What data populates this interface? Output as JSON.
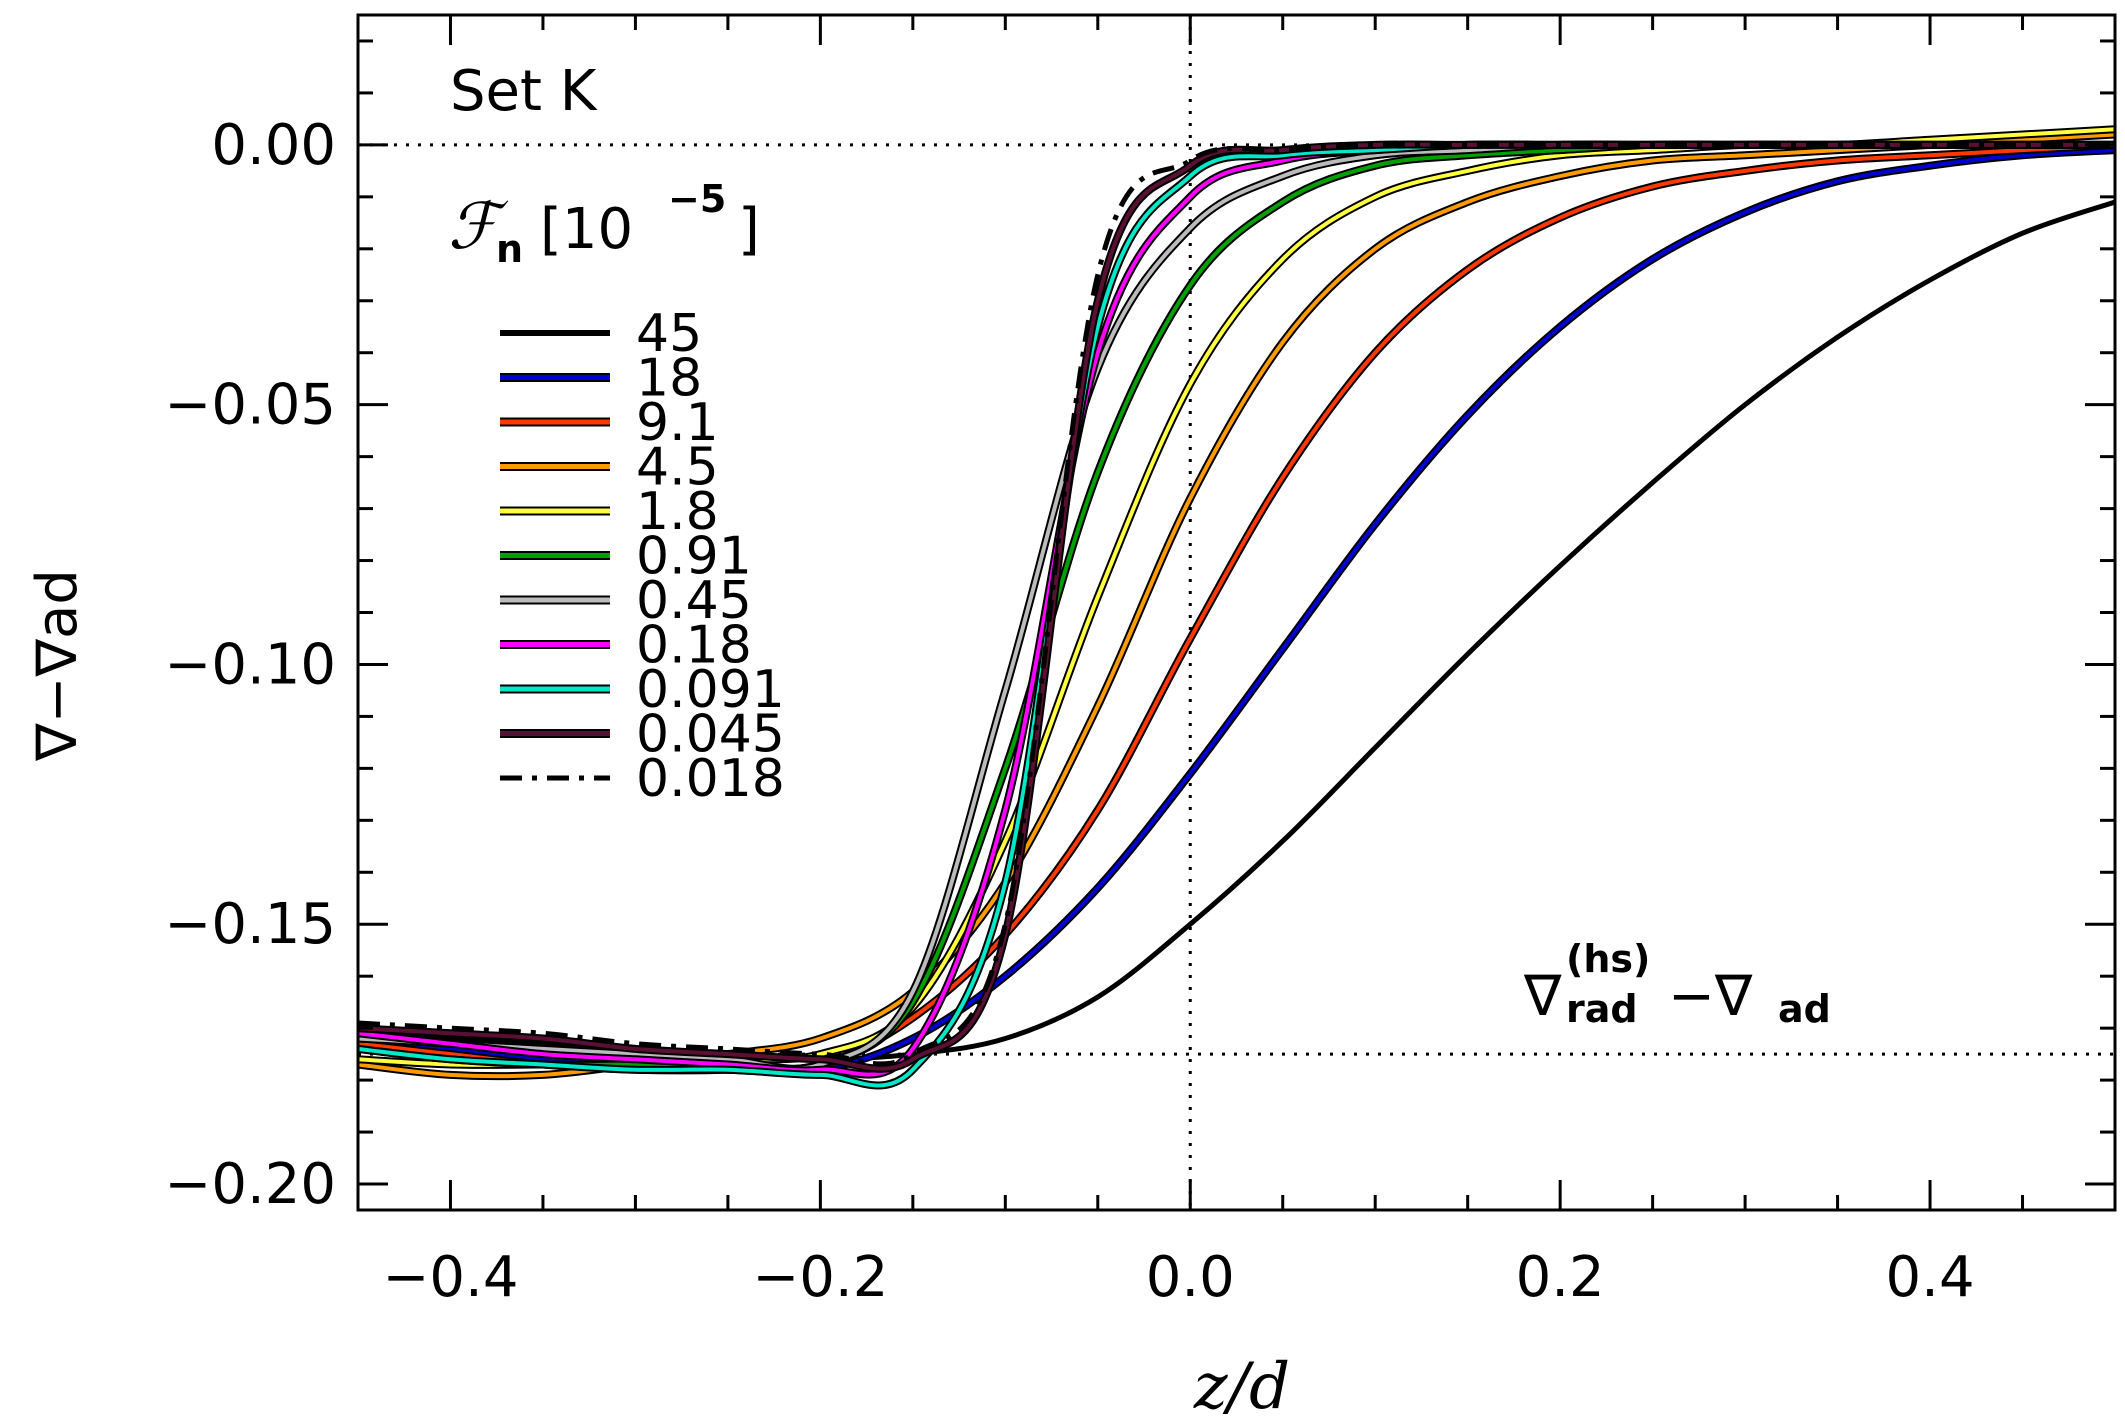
{
  "chart_data": {
    "type": "line",
    "title": "",
    "xlabel": "z/d",
    "ylabel": "∇−∇ad",
    "xlim": [
      -0.45,
      0.5
    ],
    "ylim": [
      -0.205,
      0.025
    ],
    "xticks": [
      -0.4,
      -0.2,
      0.0,
      0.2,
      0.4
    ],
    "xtick_labels": [
      "−0.4",
      "−0.2",
      "0.0",
      "0.2",
      "0.4"
    ],
    "yticks": [
      0.0,
      -0.05,
      -0.1,
      -0.15,
      -0.2
    ],
    "ytick_labels": [
      "0.00",
      "−0.05",
      "−0.10",
      "−0.15",
      "−0.20"
    ],
    "annotations": {
      "set_label": "Set K",
      "legend_title": "ℱn [10⁻⁵]",
      "legend_title_main": "ℱ",
      "legend_title_sub": "n",
      "legend_title_unit": "[10",
      "legend_title_exp": "−5",
      "legend_title_close": "]",
      "hs_label_main": "∇",
      "hs_label_sup": "(hs)",
      "hs_label_sub": "rad",
      "hs_label_rest": "−∇",
      "hs_label_sub2": "ad"
    },
    "reference_lines": {
      "horizontal_zero": 0.0,
      "horizontal_hs": -0.175,
      "vertical_zero": 0.0
    },
    "legend_placement": "left",
    "series": [
      {
        "name": "45",
        "color": "#000000",
        "style": "solid",
        "x": [
          -0.45,
          -0.4,
          -0.35,
          -0.3,
          -0.25,
          -0.2,
          -0.15,
          -0.1,
          -0.05,
          0.0,
          0.05,
          0.1,
          0.15,
          0.2,
          0.25,
          0.3,
          0.35,
          0.4,
          0.45,
          0.5
        ],
        "y": [
          -0.171,
          -0.172,
          -0.173,
          -0.174,
          -0.175,
          -0.176,
          -0.175,
          -0.172,
          -0.164,
          -0.15,
          -0.134,
          -0.116,
          -0.098,
          -0.081,
          -0.065,
          -0.05,
          -0.037,
          -0.026,
          -0.017,
          -0.011
        ]
      },
      {
        "name": "18",
        "color": "#0000d0",
        "style": "solid",
        "x": [
          -0.45,
          -0.4,
          -0.35,
          -0.3,
          -0.25,
          -0.2,
          -0.15,
          -0.1,
          -0.05,
          0.0,
          0.05,
          0.1,
          0.15,
          0.2,
          0.25,
          0.3,
          0.35,
          0.4,
          0.45,
          0.5
        ],
        "y": [
          -0.172,
          -0.174,
          -0.176,
          -0.177,
          -0.178,
          -0.178,
          -0.172,
          -0.16,
          -0.143,
          -0.121,
          -0.097,
          -0.073,
          -0.052,
          -0.035,
          -0.022,
          -0.013,
          -0.007,
          -0.004,
          -0.002,
          -0.001
        ]
      },
      {
        "name": "9.1",
        "color": "#ff3800",
        "style": "solid",
        "x": [
          -0.45,
          -0.4,
          -0.35,
          -0.3,
          -0.25,
          -0.2,
          -0.15,
          -0.1,
          -0.05,
          0.0,
          0.05,
          0.1,
          0.15,
          0.2,
          0.25,
          0.3,
          0.35,
          0.4,
          0.45,
          0.5
        ],
        "y": [
          -0.173,
          -0.175,
          -0.177,
          -0.178,
          -0.178,
          -0.177,
          -0.168,
          -0.152,
          -0.128,
          -0.095,
          -0.064,
          -0.04,
          -0.024,
          -0.014,
          -0.008,
          -0.005,
          -0.003,
          -0.002,
          -0.001,
          0.0
        ]
      },
      {
        "name": "4.5",
        "color": "#ff9b00",
        "style": "solid",
        "x": [
          -0.45,
          -0.4,
          -0.35,
          -0.3,
          -0.25,
          -0.2,
          -0.15,
          -0.1,
          -0.05,
          0.0,
          0.05,
          0.1,
          0.15,
          0.2,
          0.25,
          0.3,
          0.35,
          0.4,
          0.45,
          0.5
        ],
        "y": [
          -0.177,
          -0.179,
          -0.179,
          -0.177,
          -0.175,
          -0.172,
          -0.163,
          -0.142,
          -0.108,
          -0.068,
          -0.038,
          -0.02,
          -0.011,
          -0.006,
          -0.003,
          -0.002,
          -0.001,
          0.0,
          0.001,
          0.002
        ]
      },
      {
        "name": "1.8",
        "color": "#ffff40",
        "style": "solid",
        "x": [
          -0.45,
          -0.4,
          -0.35,
          -0.3,
          -0.25,
          -0.2,
          -0.15,
          -0.1,
          -0.05,
          0.0,
          0.05,
          0.1,
          0.15,
          0.2,
          0.25,
          0.3,
          0.35,
          0.4,
          0.45,
          0.5
        ],
        "y": [
          -0.176,
          -0.177,
          -0.177,
          -0.177,
          -0.176,
          -0.175,
          -0.166,
          -0.134,
          -0.087,
          -0.046,
          -0.022,
          -0.01,
          -0.005,
          -0.002,
          -0.001,
          0.0,
          0.0,
          0.001,
          0.002,
          0.003
        ]
      },
      {
        "name": "0.91",
        "color": "#00a000",
        "style": "solid",
        "x": [
          -0.45,
          -0.4,
          -0.35,
          -0.3,
          -0.25,
          -0.2,
          -0.15,
          -0.1,
          -0.05,
          0.0,
          0.05,
          0.1,
          0.15,
          0.2,
          0.25,
          0.3,
          0.35,
          0.4,
          0.45,
          0.5
        ],
        "y": [
          -0.174,
          -0.176,
          -0.177,
          -0.177,
          -0.177,
          -0.177,
          -0.165,
          -0.12,
          -0.063,
          -0.027,
          -0.011,
          -0.004,
          -0.002,
          -0.001,
          0.0,
          0.0,
          0.0,
          0.0,
          0.0,
          0.0
        ]
      },
      {
        "name": "0.45",
        "color": "#bbbbbb",
        "style": "solid",
        "x": [
          -0.45,
          -0.4,
          -0.35,
          -0.3,
          -0.25,
          -0.2,
          -0.15,
          -0.1,
          -0.05,
          0.0,
          0.05,
          0.1,
          0.15,
          0.2,
          0.25,
          0.3,
          0.35,
          0.4,
          0.45,
          0.5
        ],
        "y": [
          -0.172,
          -0.173,
          -0.174,
          -0.175,
          -0.176,
          -0.177,
          -0.163,
          -0.105,
          -0.043,
          -0.016,
          -0.006,
          -0.002,
          -0.001,
          0.0,
          0.0,
          0.0,
          0.0,
          0.0,
          0.0,
          0.0
        ]
      },
      {
        "name": "0.18",
        "color": "#ff00ff",
        "style": "solid",
        "x": [
          -0.45,
          -0.4,
          -0.35,
          -0.3,
          -0.25,
          -0.2,
          -0.15,
          -0.1,
          -0.05,
          0.0,
          0.05,
          0.1,
          0.15,
          0.2,
          0.25,
          0.3,
          0.35,
          0.4,
          0.45,
          0.5
        ],
        "y": [
          -0.171,
          -0.173,
          -0.175,
          -0.176,
          -0.177,
          -0.178,
          -0.174,
          -0.128,
          -0.04,
          -0.01,
          -0.003,
          -0.001,
          0.0,
          0.0,
          0.0,
          0.0,
          0.0,
          0.0,
          0.0,
          0.0
        ]
      },
      {
        "name": "0.091",
        "color": "#00e8c8",
        "style": "solid",
        "x": [
          -0.45,
          -0.4,
          -0.35,
          -0.3,
          -0.25,
          -0.2,
          -0.15,
          -0.1,
          -0.05,
          0.0,
          0.05,
          0.1,
          0.15,
          0.2,
          0.25,
          0.3,
          0.35,
          0.4,
          0.45,
          0.5
        ],
        "y": [
          -0.174,
          -0.176,
          -0.177,
          -0.178,
          -0.178,
          -0.179,
          -0.178,
          -0.142,
          -0.035,
          -0.006,
          -0.002,
          -0.001,
          0.0,
          0.0,
          0.0,
          0.0,
          0.0,
          0.0,
          0.0,
          0.0
        ]
      },
      {
        "name": "0.045",
        "color": "#5a1034",
        "style": "solid",
        "x": [
          -0.45,
          -0.4,
          -0.35,
          -0.3,
          -0.25,
          -0.2,
          -0.15,
          -0.1,
          -0.05,
          0.0,
          0.05,
          0.1,
          0.15,
          0.2,
          0.25,
          0.3,
          0.35,
          0.4,
          0.45,
          0.5
        ],
        "y": [
          -0.17,
          -0.171,
          -0.172,
          -0.174,
          -0.175,
          -0.176,
          -0.176,
          -0.152,
          -0.03,
          -0.004,
          -0.001,
          0.0,
          0.0,
          0.0,
          0.0,
          0.0,
          0.0,
          0.0,
          0.0,
          0.0
        ]
      },
      {
        "name": "0.018",
        "color": "#000000",
        "style": "dashdot",
        "x": [
          -0.45,
          -0.4,
          -0.35,
          -0.3,
          -0.25,
          -0.2,
          -0.15,
          -0.1,
          -0.05,
          0.0,
          0.05,
          0.1,
          0.15,
          0.2,
          0.25,
          0.3,
          0.35,
          0.4,
          0.45,
          0.5
        ],
        "y": [
          -0.169,
          -0.17,
          -0.171,
          -0.173,
          -0.174,
          -0.175,
          -0.175,
          -0.15,
          -0.025,
          -0.003,
          -0.001,
          0.0,
          0.0,
          0.0,
          0.0,
          0.0,
          0.0,
          0.0,
          0.0,
          0.0
        ]
      }
    ]
  }
}
